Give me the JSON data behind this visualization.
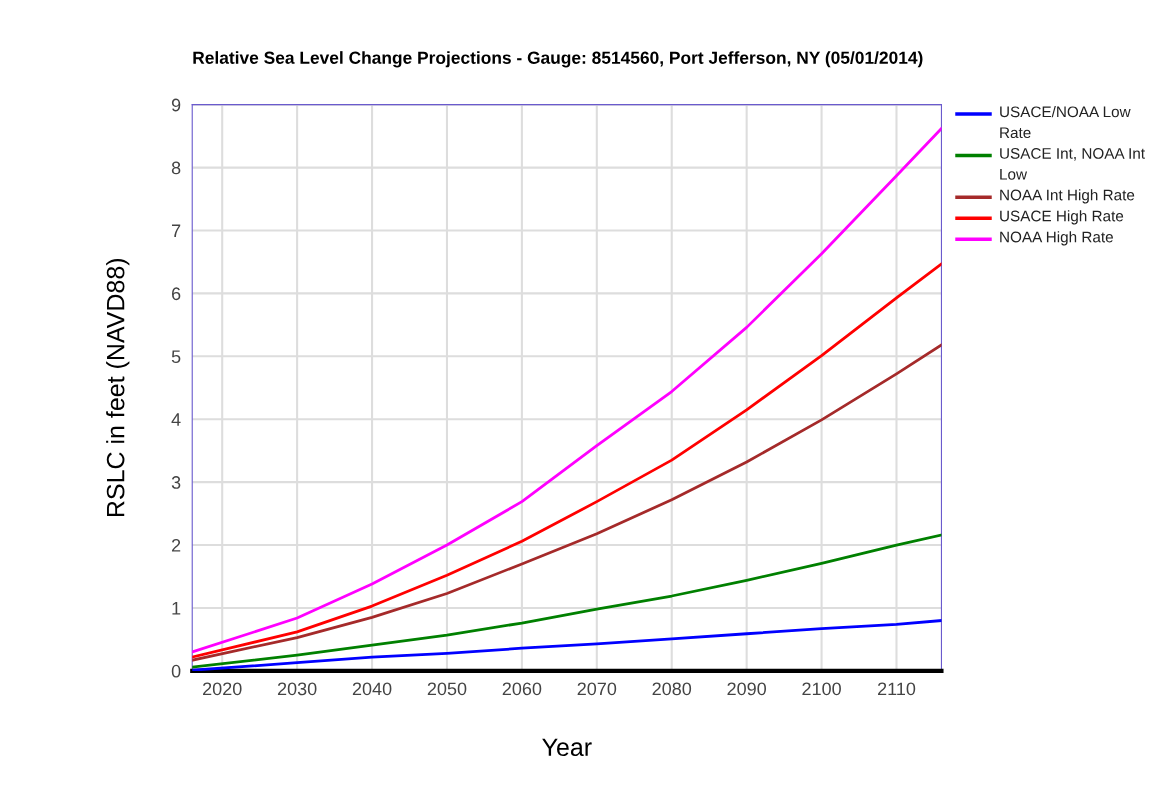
{
  "chart_data": {
    "type": "line",
    "title": "Relative Sea Level Change Projections - Gauge: 8514560, Port Jefferson, NY (05/01/2014)",
    "xlabel": "Year",
    "ylabel": "RSLC in feet (NAVD88)",
    "x": [
      2016,
      2030,
      2040,
      2050,
      2060,
      2070,
      2080,
      2090,
      2100,
      2110,
      2116
    ],
    "series": [
      {
        "name": "USACE/NOAA Low Rate",
        "color": "#0000ff",
        "values": [
          0.01,
          0.13,
          0.22,
          0.28,
          0.36,
          0.43,
          0.51,
          0.59,
          0.67,
          0.74,
          0.8
        ]
      },
      {
        "name": "USACE Int, NOAA Int Low",
        "color": "#008000",
        "values": [
          0.06,
          0.25,
          0.41,
          0.57,
          0.76,
          0.98,
          1.19,
          1.44,
          1.71,
          2.0,
          2.16
        ]
      },
      {
        "name": "NOAA Int High Rate",
        "color": "#a52a2a",
        "values": [
          0.17,
          0.53,
          0.85,
          1.23,
          1.7,
          2.18,
          2.72,
          3.32,
          3.99,
          4.72,
          5.18
        ]
      },
      {
        "name": "USACE High Rate",
        "color": "#ff0000",
        "values": [
          0.22,
          0.62,
          1.03,
          1.52,
          2.06,
          2.69,
          3.35,
          4.15,
          5.01,
          5.93,
          6.47
        ]
      },
      {
        "name": "NOAA High Rate",
        "color": "#ff00ff",
        "values": [
          0.3,
          0.84,
          1.38,
          2.0,
          2.69,
          3.58,
          4.44,
          5.46,
          6.63,
          7.87,
          8.62
        ]
      }
    ],
    "xlim": [
      2016,
      2116
    ],
    "xticks": [
      2020,
      2030,
      2040,
      2050,
      2060,
      2070,
      2080,
      2090,
      2100,
      2110
    ],
    "ylim": [
      0,
      9
    ],
    "yticks": [
      0,
      1,
      2,
      3,
      4,
      5,
      6,
      7,
      8,
      9
    ],
    "grid": true,
    "legend": "top right",
    "marker": "none",
    "line_style": "solid"
  }
}
